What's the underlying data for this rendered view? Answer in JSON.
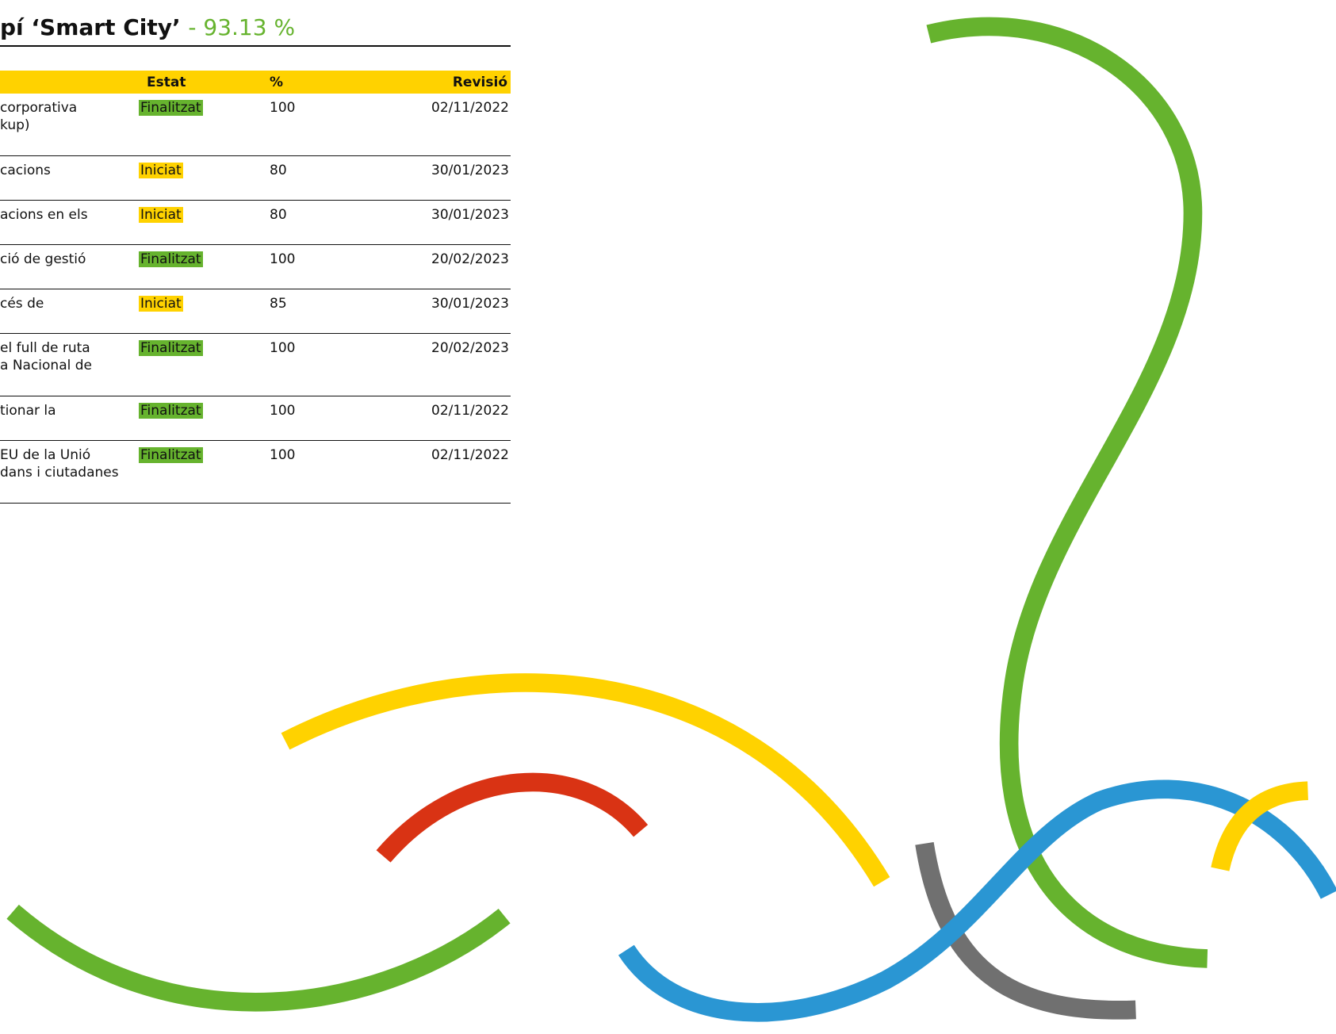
{
  "header": {
    "title": "pí ‘Smart City’",
    "score": "- 93.13 %"
  },
  "table": {
    "columns": [
      "Estat",
      "%",
      "Revisió"
    ],
    "rows": [
      {
        "description": [
          "corporativa",
          "kup)"
        ],
        "status": "Finalitzat",
        "status_color": "#66b32e",
        "percent": "100",
        "revision": "02/11/2022"
      },
      {
        "description": [
          "cacions"
        ],
        "status": "Iniciat",
        "status_color": "#ffd200",
        "percent": "80",
        "revision": "30/01/2023"
      },
      {
        "description": [
          "acions en els"
        ],
        "status": "Iniciat",
        "status_color": "#ffd200",
        "percent": "80",
        "revision": "30/01/2023"
      },
      {
        "description": [
          "ció de gestió"
        ],
        "status": "Finalitzat",
        "status_color": "#66b32e",
        "percent": "100",
        "revision": "20/02/2023"
      },
      {
        "description": [
          "cés de"
        ],
        "status": "Iniciat",
        "status_color": "#ffd200",
        "percent": "85",
        "revision": "30/01/2023"
      },
      {
        "description": [
          "el full de ruta",
          "a Nacional de"
        ],
        "status": "Finalitzat",
        "status_color": "#66b32e",
        "percent": "100",
        "revision": "20/02/2023"
      },
      {
        "description": [
          "tionar la"
        ],
        "status": "Finalitzat",
        "status_color": "#66b32e",
        "percent": "100",
        "revision": "02/11/2022"
      },
      {
        "description": [
          "EU de la Unió",
          "dans i ciutadanes"
        ],
        "status": "Finalitzat",
        "status_color": "#66b32e",
        "percent": "100",
        "revision": "02/11/2022"
      }
    ]
  }
}
